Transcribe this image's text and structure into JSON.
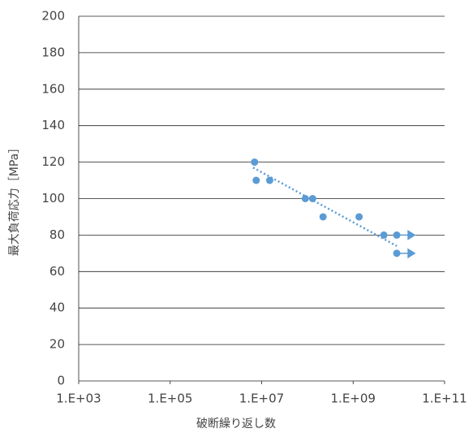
{
  "chart_data": {
    "type": "scatter",
    "x_label": "破断繰り返し数",
    "y_label": "最大負荷応力［MPa］",
    "log_x": true,
    "grid": true,
    "color": "#5b9bd5",
    "x": [
      7000000,
      7600000,
      15000000,
      90000000,
      130000000,
      220000000,
      1350000000,
      4700000000,
      9000000000,
      9000000000
    ],
    "y": [
      120,
      110,
      110,
      100,
      100,
      90,
      90,
      80,
      80,
      70
    ],
    "runout": [
      false,
      false,
      false,
      false,
      false,
      false,
      false,
      false,
      true,
      true
    ],
    "trendline": {
      "x": [
        6500000,
        9000000000
      ],
      "y": [
        117,
        74
      ]
    },
    "xlim": [
      1000,
      100000000000
    ],
    "xticks": [
      {
        "value": 1000,
        "label": "1.E+03"
      },
      {
        "value": 100000,
        "label": "1.E+05"
      },
      {
        "value": 10000000,
        "label": "1.E+07"
      },
      {
        "value": 1000000000,
        "label": "1.E+09"
      },
      {
        "value": 100000000000,
        "label": "1.E+11"
      }
    ],
    "ylim": [
      0,
      200
    ],
    "yticks": [
      0,
      20,
      40,
      60,
      80,
      100,
      120,
      140,
      160,
      180,
      200
    ]
  }
}
